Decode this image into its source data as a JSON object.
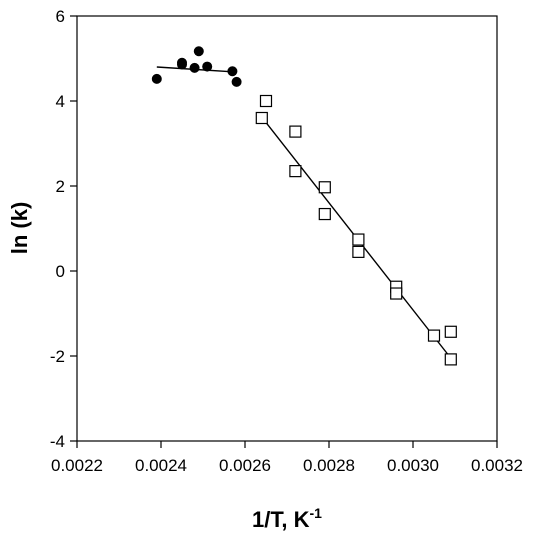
{
  "chart_data": {
    "type": "scatter",
    "title": "",
    "xlabel": "1/T, K",
    "xlabel_superscript": "-1",
    "ylabel": "ln (k)",
    "xlim": [
      0.0022,
      0.0032
    ],
    "ylim": [
      -4,
      6
    ],
    "x_ticks": [
      0.0022,
      0.0024,
      0.0026,
      0.0028,
      0.003,
      0.0032
    ],
    "x_tick_labels": [
      "0.0022",
      "0.0024",
      "0.0026",
      "0.0028",
      "0.0030",
      "0.0032"
    ],
    "y_ticks": [
      -4,
      -2,
      0,
      2,
      4,
      6
    ],
    "y_tick_labels": [
      "-4",
      "-2",
      "0",
      "2",
      "4",
      "6"
    ],
    "grid": false,
    "legend": "none",
    "series": [
      {
        "marker": "filled-circle",
        "color": "#000000",
        "x": [
          0.00239,
          0.00245,
          0.00245,
          0.00248,
          0.00249,
          0.00251,
          0.00257,
          0.00258
        ],
        "y": [
          4.52,
          4.86,
          4.9,
          4.78,
          5.17,
          4.81,
          4.7,
          4.45
        ],
        "fit_line": {
          "x": [
            0.00239,
            0.00258
          ],
          "y": [
            4.8,
            4.68
          ]
        }
      },
      {
        "marker": "open-square",
        "color": "#000000",
        "x": [
          0.00264,
          0.00265,
          0.00272,
          0.00272,
          0.00279,
          0.00279,
          0.00287,
          0.00287,
          0.00296,
          0.00296,
          0.00305,
          0.00309,
          0.00309
        ],
        "y": [
          3.6,
          4.0,
          3.28,
          2.35,
          1.97,
          1.34,
          0.74,
          0.45,
          -0.37,
          -0.53,
          -1.52,
          -1.43,
          -2.08
        ],
        "fit_line": {
          "x": [
            0.00264,
            0.00309
          ],
          "y": [
            3.62,
            -2.05
          ]
        }
      }
    ]
  }
}
